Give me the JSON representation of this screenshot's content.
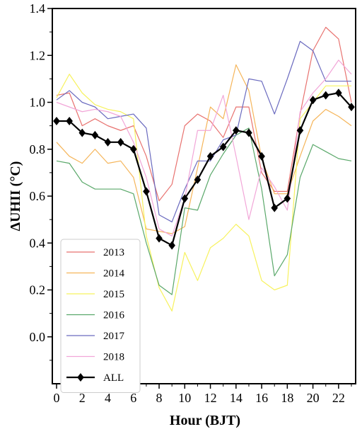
{
  "chart_data": {
    "type": "line",
    "xlabel": "Hour (BJT)",
    "ylabel": "ΔUHII (°C)",
    "xlim": [
      0,
      23
    ],
    "ylim": [
      -0.2,
      1.4
    ],
    "xticks": [
      "0",
      "2",
      "4",
      "6",
      "8",
      "10",
      "12",
      "14",
      "16",
      "18",
      "20",
      "22"
    ],
    "yticks": [
      "0.0",
      "0.2",
      "0.4",
      "0.6",
      "0.8",
      "1.0",
      "1.2",
      "1.4"
    ],
    "grid": false,
    "legend_position": "bottom-left",
    "x": [
      0,
      1,
      2,
      3,
      4,
      5,
      6,
      7,
      8,
      9,
      10,
      11,
      12,
      13,
      14,
      15,
      16,
      17,
      18,
      19,
      20,
      21,
      22,
      23
    ],
    "series": [
      {
        "name": "2013",
        "color": "#e8726f",
        "values": [
          1.03,
          1.04,
          0.9,
          0.93,
          0.9,
          0.88,
          0.9,
          0.77,
          0.58,
          0.65,
          0.9,
          0.95,
          0.92,
          0.85,
          0.98,
          0.98,
          0.7,
          0.62,
          0.62,
          0.95,
          1.22,
          1.32,
          1.27,
          1.0
        ]
      },
      {
        "name": "2014",
        "color": "#f5b55a",
        "values": [
          0.83,
          0.77,
          0.74,
          0.8,
          0.74,
          0.75,
          0.68,
          0.46,
          0.45,
          0.44,
          0.47,
          0.72,
          0.98,
          0.93,
          1.16,
          1.05,
          0.76,
          0.61,
          0.61,
          0.77,
          0.92,
          0.97,
          0.94,
          0.9
        ]
      },
      {
        "name": "2015",
        "color": "#f7f25e",
        "values": [
          1.02,
          1.12,
          1.04,
          0.99,
          0.97,
          0.96,
          0.93,
          0.43,
          0.21,
          0.11,
          0.36,
          0.24,
          0.38,
          0.42,
          0.48,
          0.43,
          0.24,
          0.2,
          0.22,
          0.93,
          1.0,
          1.07,
          1.07,
          1.07
        ]
      },
      {
        "name": "2016",
        "color": "#5aa86a",
        "values": [
          0.75,
          0.74,
          0.66,
          0.63,
          0.63,
          0.63,
          0.61,
          0.4,
          0.22,
          0.18,
          0.55,
          0.54,
          0.69,
          0.78,
          0.86,
          0.89,
          0.63,
          0.26,
          0.35,
          0.68,
          0.82,
          0.79,
          0.76,
          0.75
        ]
      },
      {
        "name": "2017",
        "color": "#6a6abf",
        "values": [
          1.01,
          1.05,
          1.0,
          0.98,
          0.93,
          0.94,
          0.95,
          0.89,
          0.52,
          0.49,
          0.63,
          0.75,
          0.75,
          0.84,
          0.86,
          1.1,
          1.09,
          0.95,
          1.1,
          1.26,
          1.22,
          1.09,
          1.09,
          1.09
        ]
      },
      {
        "name": "2018",
        "color": "#f2a6d8",
        "values": [
          1.0,
          0.98,
          0.96,
          0.97,
          0.96,
          0.94,
          0.83,
          0.68,
          0.46,
          0.43,
          0.59,
          0.88,
          0.88,
          1.03,
          0.77,
          0.5,
          0.72,
          0.64,
          0.54,
          0.96,
          1.04,
          1.1,
          1.18,
          1.12
        ]
      },
      {
        "name": "ALL",
        "color": "#000000",
        "marker": "diamond",
        "values": [
          0.92,
          0.92,
          0.87,
          0.86,
          0.83,
          0.83,
          0.8,
          0.62,
          0.42,
          0.39,
          0.59,
          0.67,
          0.77,
          0.81,
          0.88,
          0.87,
          0.77,
          0.55,
          0.59,
          0.88,
          1.01,
          1.03,
          1.04,
          0.98
        ]
      }
    ]
  }
}
